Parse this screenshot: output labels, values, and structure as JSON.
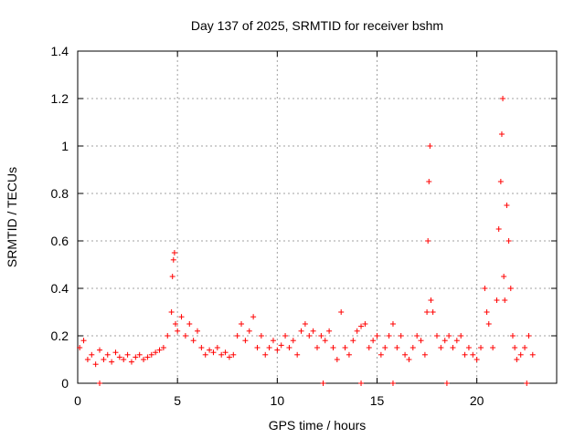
{
  "chart_data": {
    "type": "scatter",
    "title": "Day 137 of 2025, SRMTID for receiver bshm",
    "xlabel": "GPS time / hours",
    "ylabel": "SRMTID / TECUs",
    "xlim": [
      0,
      24
    ],
    "ylim": [
      0,
      1.4
    ],
    "x_ticks": [
      0,
      5,
      10,
      15,
      20
    ],
    "y_ticks": [
      0,
      0.2,
      0.4,
      0.6,
      0.8,
      1,
      1.2,
      1.4
    ],
    "x_tick_labels": [
      "0",
      "5",
      "10",
      "15",
      "20"
    ],
    "y_tick_labels": [
      "0",
      "0.2",
      "0.4",
      "0.6",
      "0.8",
      "1",
      "1.2",
      "1.4"
    ],
    "grid": true,
    "marker": "+",
    "series": [
      {
        "name": "SRMTID",
        "color": "#ff0000",
        "x": [
          0.1,
          0.3,
          0.5,
          0.7,
          0.9,
          1.1,
          1.3,
          1.5,
          1.7,
          1.9,
          2.1,
          2.3,
          2.5,
          2.7,
          2.9,
          3.1,
          3.3,
          3.5,
          3.7,
          3.9,
          4.1,
          4.3,
          4.5,
          4.7,
          4.75,
          4.8,
          4.85,
          4.9,
          5.0,
          5.2,
          5.4,
          5.6,
          5.8,
          6.0,
          6.2,
          6.4,
          6.6,
          6.8,
          7.0,
          7.2,
          7.4,
          7.6,
          7.8,
          8.0,
          8.2,
          8.4,
          8.6,
          8.8,
          9.0,
          9.2,
          9.4,
          9.6,
          9.8,
          10.0,
          10.2,
          10.4,
          10.6,
          10.8,
          11.0,
          11.2,
          11.4,
          11.6,
          11.8,
          12.0,
          12.2,
          12.4,
          12.6,
          12.8,
          13.0,
          13.2,
          13.4,
          13.6,
          13.8,
          14.0,
          14.2,
          14.4,
          14.6,
          14.8,
          15.0,
          15.2,
          15.4,
          15.6,
          15.8,
          16.0,
          16.2,
          16.4,
          16.6,
          16.8,
          17.0,
          17.2,
          17.4,
          17.5,
          17.55,
          17.6,
          17.65,
          17.7,
          17.8,
          18.0,
          18.2,
          18.4,
          18.6,
          18.8,
          19.0,
          19.2,
          19.4,
          19.6,
          19.8,
          20.0,
          20.2,
          20.4,
          20.5,
          20.6,
          20.8,
          21.0,
          21.1,
          21.2,
          21.25,
          21.3,
          21.35,
          21.4,
          21.5,
          21.6,
          21.7,
          21.8,
          21.9,
          22.0,
          22.2,
          22.4,
          22.6,
          22.8,
          1.1,
          12.3,
          14.2,
          15.8,
          18.5,
          22.5
        ],
        "y": [
          0.15,
          0.18,
          0.1,
          0.12,
          0.08,
          0.14,
          0.1,
          0.12,
          0.09,
          0.13,
          0.11,
          0.1,
          0.12,
          0.09,
          0.11,
          0.12,
          0.1,
          0.11,
          0.12,
          0.13,
          0.14,
          0.15,
          0.2,
          0.3,
          0.45,
          0.52,
          0.55,
          0.25,
          0.22,
          0.28,
          0.2,
          0.25,
          0.18,
          0.22,
          0.15,
          0.12,
          0.14,
          0.13,
          0.15,
          0.12,
          0.13,
          0.11,
          0.12,
          0.2,
          0.25,
          0.18,
          0.22,
          0.28,
          0.15,
          0.2,
          0.12,
          0.15,
          0.18,
          0.14,
          0.16,
          0.2,
          0.15,
          0.18,
          0.12,
          0.22,
          0.25,
          0.2,
          0.22,
          0.15,
          0.2,
          0.18,
          0.22,
          0.15,
          0.1,
          0.3,
          0.15,
          0.12,
          0.18,
          0.22,
          0.24,
          0.25,
          0.15,
          0.18,
          0.2,
          0.12,
          0.15,
          0.2,
          0.25,
          0.15,
          0.2,
          0.12,
          0.1,
          0.15,
          0.2,
          0.18,
          0.12,
          0.3,
          0.6,
          0.85,
          1.0,
          0.35,
          0.3,
          0.2,
          0.15,
          0.18,
          0.2,
          0.15,
          0.18,
          0.2,
          0.12,
          0.15,
          0.12,
          0.1,
          0.15,
          0.4,
          0.3,
          0.25,
          0.15,
          0.35,
          0.65,
          0.85,
          1.05,
          1.2,
          0.45,
          0.35,
          0.75,
          0.6,
          0.4,
          0.2,
          0.15,
          0.1,
          0.12,
          0.15,
          0.2,
          0.12,
          0.0,
          0.0,
          0.0,
          0.0,
          0.0,
          0.0
        ]
      }
    ]
  }
}
